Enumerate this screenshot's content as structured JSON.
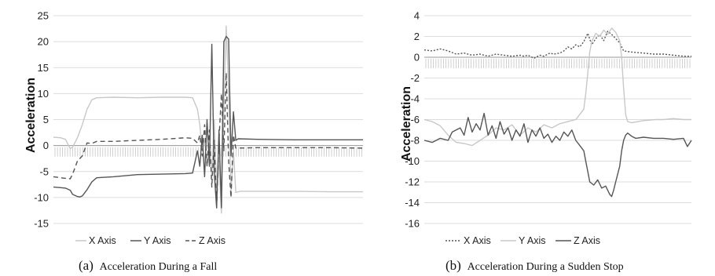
{
  "chart_data": [
    {
      "type": "line",
      "caption_letter": "(a)",
      "caption_text": "Acceleration During a Fall",
      "ylabel": "Acceleration",
      "ylim": [
        -15,
        25
      ],
      "yticks": [
        25,
        20,
        15,
        10,
        5,
        0,
        -5,
        -10,
        -15
      ],
      "grid": true,
      "legend_position": "bottom",
      "series": [
        {
          "name": "X Axis",
          "color": "#c8c8c8",
          "dash": "",
          "points": [
            [
              0,
              1.6
            ],
            [
              3,
              1.5
            ],
            [
              5,
              1.2
            ],
            [
              6,
              0.3
            ],
            [
              7,
              -0.6
            ],
            [
              8,
              -0.3
            ],
            [
              10,
              1.5
            ],
            [
              12,
              4
            ],
            [
              14,
              7
            ],
            [
              16,
              8.8
            ],
            [
              18,
              9.2
            ],
            [
              25,
              9.3
            ],
            [
              35,
              9.2
            ],
            [
              45,
              9.3
            ],
            [
              55,
              9.3
            ],
            [
              58,
              9.2
            ],
            [
              60,
              7
            ],
            [
              61,
              4
            ],
            [
              62,
              -1
            ],
            [
              63,
              1
            ],
            [
              64,
              -4
            ],
            [
              65,
              0
            ],
            [
              66,
              -6
            ],
            [
              67,
              5
            ],
            [
              68,
              -9
            ],
            [
              69,
              -3
            ],
            [
              70,
              -13
            ],
            [
              71,
              8
            ],
            [
              72,
              23
            ],
            [
              73,
              10
            ],
            [
              74,
              -9
            ],
            [
              75,
              -1
            ],
            [
              76,
              -9
            ],
            [
              78,
              -8.8
            ],
            [
              85,
              -8.8
            ],
            [
              100,
              -8.8
            ],
            [
              115,
              -8.9
            ],
            [
              129,
              -8.9
            ]
          ]
        },
        {
          "name": "Y Axis",
          "color": "#555555",
          "dash": "",
          "points": [
            [
              0,
              -8
            ],
            [
              3,
              -8.1
            ],
            [
              5,
              -8.2
            ],
            [
              7,
              -8.6
            ],
            [
              8,
              -9.4
            ],
            [
              10,
              -9.8
            ],
            [
              11,
              -9.9
            ],
            [
              12,
              -9.7
            ],
            [
              14,
              -8.5
            ],
            [
              16,
              -7
            ],
            [
              18,
              -6.2
            ],
            [
              25,
              -6
            ],
            [
              35,
              -5.6
            ],
            [
              45,
              -5.5
            ],
            [
              55,
              -5.4
            ],
            [
              58,
              -5.3
            ],
            [
              60,
              -1
            ],
            [
              61,
              -4
            ],
            [
              62,
              2
            ],
            [
              63,
              -6
            ],
            [
              64,
              5
            ],
            [
              65,
              -4
            ],
            [
              66,
              19.5
            ],
            [
              67,
              -5
            ],
            [
              68,
              -12
            ],
            [
              69,
              3
            ],
            [
              70,
              -12
            ],
            [
              71,
              20
            ],
            [
              72,
              21
            ],
            [
              73,
              20.5
            ],
            [
              74,
              -2
            ],
            [
              75,
              6.5
            ],
            [
              76,
              1
            ],
            [
              77,
              1.3
            ],
            [
              85,
              1.2
            ],
            [
              100,
              1.1
            ],
            [
              115,
              1.1
            ],
            [
              129,
              1.1
            ]
          ]
        },
        {
          "name": "Z Axis",
          "color": "#555555",
          "dash": "6,4",
          "points": [
            [
              0,
              -6
            ],
            [
              3,
              -6.2
            ],
            [
              5,
              -6.3
            ],
            [
              7,
              -6.4
            ],
            [
              8,
              -5.5
            ],
            [
              10,
              -3
            ],
            [
              12,
              -2
            ],
            [
              14,
              0.5
            ],
            [
              16,
              0.4
            ],
            [
              18,
              0.8
            ],
            [
              25,
              0.8
            ],
            [
              35,
              1
            ],
            [
              45,
              1.2
            ],
            [
              55,
              1.5
            ],
            [
              58,
              1.4
            ],
            [
              60,
              0.5
            ],
            [
              61,
              2
            ],
            [
              62,
              -2
            ],
            [
              63,
              4
            ],
            [
              64,
              -4
            ],
            [
              65,
              3
            ],
            [
              66,
              -8
            ],
            [
              67,
              1
            ],
            [
              68,
              -12
            ],
            [
              69,
              1
            ],
            [
              70,
              10
            ],
            [
              71,
              -1
            ],
            [
              72,
              14
            ],
            [
              73,
              -3
            ],
            [
              74,
              -10
            ],
            [
              75,
              2
            ],
            [
              76,
              -0.5
            ],
            [
              85,
              -0.4
            ],
            [
              100,
              -0.4
            ],
            [
              115,
              -0.4
            ],
            [
              129,
              -0.5
            ]
          ]
        }
      ],
      "legend": [
        {
          "label": "X Axis",
          "color": "#c8c8c8",
          "dash": ""
        },
        {
          "label": "Y Axis",
          "color": "#555555",
          "dash": ""
        },
        {
          "label": "Z Axis",
          "color": "#555555",
          "dash": "5,3"
        }
      ]
    },
    {
      "type": "line",
      "caption_letter": "(b)",
      "caption_text": "Acceleration During a Sudden Stop",
      "ylabel": "Acceleration",
      "ylim": [
        -16,
        4
      ],
      "yticks": [
        4,
        2,
        0,
        -2,
        -4,
        -6,
        -8,
        -10,
        -12,
        -14,
        -16
      ],
      "grid": true,
      "legend_position": "bottom",
      "series": [
        {
          "name": "X Axis",
          "color": "#555555",
          "dash": "2,2",
          "points": [
            [
              0,
              0.7
            ],
            [
              4,
              0.6
            ],
            [
              8,
              0.8
            ],
            [
              12,
              0.6
            ],
            [
              16,
              0.3
            ],
            [
              20,
              0.4
            ],
            [
              24,
              0.2
            ],
            [
              28,
              0.3
            ],
            [
              32,
              0.1
            ],
            [
              36,
              0.3
            ],
            [
              40,
              0.2
            ],
            [
              44,
              0.1
            ],
            [
              48,
              0.2
            ],
            [
              50,
              0.1
            ],
            [
              52,
              0.2
            ],
            [
              55,
              -0.1
            ],
            [
              58,
              0.2
            ],
            [
              60,
              0.1
            ],
            [
              63,
              0.4
            ],
            [
              65,
              0.3
            ],
            [
              68,
              0.4
            ],
            [
              70,
              0.6
            ],
            [
              72,
              1.0
            ],
            [
              74,
              0.8
            ],
            [
              76,
              1.2
            ],
            [
              78,
              1.0
            ],
            [
              80,
              1.5
            ],
            [
              82,
              2.3
            ],
            [
              84,
              1.2
            ],
            [
              86,
              1.8
            ],
            [
              88,
              2.2
            ],
            [
              90,
              1.6
            ],
            [
              92,
              2.5
            ],
            [
              94,
              2.2
            ],
            [
              96,
              1.8
            ],
            [
              98,
              1.4
            ],
            [
              100,
              0.6
            ],
            [
              104,
              0.5
            ],
            [
              110,
              0.4
            ],
            [
              115,
              0.3
            ],
            [
              120,
              0.3
            ],
            [
              125,
              0.2
            ],
            [
              130,
              0.1
            ],
            [
              134,
              0.1
            ]
          ]
        },
        {
          "name": "Y Axis",
          "color": "#c8c8c8",
          "dash": "",
          "points": [
            [
              0,
              -6
            ],
            [
              4,
              -6.2
            ],
            [
              8,
              -6.6
            ],
            [
              12,
              -7.5
            ],
            [
              16,
              -8.2
            ],
            [
              20,
              -8.3
            ],
            [
              24,
              -8.5
            ],
            [
              28,
              -8.0
            ],
            [
              32,
              -7.5
            ],
            [
              36,
              -6.8
            ],
            [
              40,
              -7.0
            ],
            [
              44,
              -6.5
            ],
            [
              48,
              -7.5
            ],
            [
              52,
              -6.8
            ],
            [
              56,
              -7.2
            ],
            [
              60,
              -6.5
            ],
            [
              64,
              -6.8
            ],
            [
              68,
              -6.4
            ],
            [
              72,
              -6.2
            ],
            [
              76,
              -6.0
            ],
            [
              78,
              -5.5
            ],
            [
              80,
              -5.0
            ],
            [
              81,
              -3.5
            ],
            [
              82,
              -1.5
            ],
            [
              83,
              0.5
            ],
            [
              84,
              1.5
            ],
            [
              86,
              2.3
            ],
            [
              88,
              2.0
            ],
            [
              90,
              2.6
            ],
            [
              92,
              2.2
            ],
            [
              94,
              2.8
            ],
            [
              96,
              2.4
            ],
            [
              98,
              1.6
            ],
            [
              99,
              0
            ],
            [
              100,
              -3
            ],
            [
              101,
              -5.5
            ],
            [
              102,
              -6.2
            ],
            [
              104,
              -6.3
            ],
            [
              110,
              -6.1
            ],
            [
              116,
              -6.0
            ],
            [
              120,
              -6.0
            ],
            [
              125,
              -5.9
            ],
            [
              130,
              -6.0
            ],
            [
              134,
              -6.0
            ]
          ]
        },
        {
          "name": "Z Axis",
          "color": "#555555",
          "dash": "",
          "points": [
            [
              0,
              -8
            ],
            [
              4,
              -8.2
            ],
            [
              8,
              -7.8
            ],
            [
              12,
              -8.0
            ],
            [
              14,
              -7.2
            ],
            [
              16,
              -7.0
            ],
            [
              18,
              -6.8
            ],
            [
              20,
              -7.5
            ],
            [
              22,
              -5.8
            ],
            [
              24,
              -7.2
            ],
            [
              26,
              -6.4
            ],
            [
              28,
              -7.0
            ],
            [
              30,
              -5.4
            ],
            [
              32,
              -7.5
            ],
            [
              34,
              -6.6
            ],
            [
              36,
              -7.8
            ],
            [
              38,
              -6.2
            ],
            [
              40,
              -7.4
            ],
            [
              42,
              -6.8
            ],
            [
              44,
              -8.0
            ],
            [
              46,
              -7.0
            ],
            [
              48,
              -7.6
            ],
            [
              50,
              -6.4
            ],
            [
              52,
              -8.2
            ],
            [
              54,
              -7.0
            ],
            [
              56,
              -7.6
            ],
            [
              58,
              -6.8
            ],
            [
              60,
              -7.8
            ],
            [
              62,
              -7.4
            ],
            [
              64,
              -8.2
            ],
            [
              66,
              -7.6
            ],
            [
              68,
              -8.0
            ],
            [
              70,
              -7.2
            ],
            [
              72,
              -7.6
            ],
            [
              74,
              -7.0
            ],
            [
              76,
              -8.0
            ],
            [
              78,
              -8.5
            ],
            [
              80,
              -9.0
            ],
            [
              81,
              -10.0
            ],
            [
              82,
              -11.0
            ],
            [
              83,
              -12.0
            ],
            [
              85,
              -12.3
            ],
            [
              87,
              -11.8
            ],
            [
              89,
              -12.6
            ],
            [
              91,
              -12.4
            ],
            [
              93,
              -13.2
            ],
            [
              94,
              -13.4
            ],
            [
              95,
              -12.8
            ],
            [
              96,
              -12.0
            ],
            [
              98,
              -10.5
            ],
            [
              99,
              -9.0
            ],
            [
              100,
              -8.0
            ],
            [
              101,
              -7.5
            ],
            [
              102,
              -7.3
            ],
            [
              104,
              -7.6
            ],
            [
              106,
              -7.8
            ],
            [
              110,
              -7.7
            ],
            [
              115,
              -7.8
            ],
            [
              120,
              -7.8
            ],
            [
              125,
              -7.9
            ],
            [
              130,
              -7.8
            ],
            [
              132,
              -8.6
            ],
            [
              134,
              -8.0
            ]
          ]
        }
      ],
      "legend": [
        {
          "label": "X Axis",
          "color": "#555555",
          "dash": "2,2"
        },
        {
          "label": "Y Axis",
          "color": "#c8c8c8",
          "dash": ""
        },
        {
          "label": "Z Axis",
          "color": "#555555",
          "dash": ""
        }
      ]
    }
  ]
}
